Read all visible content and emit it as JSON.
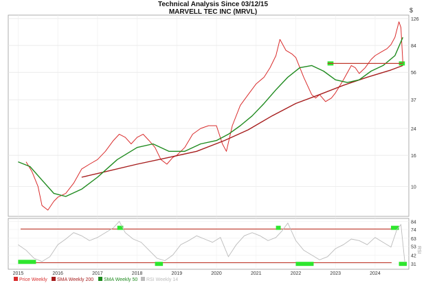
{
  "header": {
    "title": "Technical Analysis Since 03/12/15",
    "subtitle": "MARVELL TEC INC (MRVL)",
    "currency_symbol": "$"
  },
  "legend": [
    {
      "label": "Price Weekly",
      "color": "#d92b2b"
    },
    {
      "label": "SMA Weekly 200",
      "color": "#a61c1c"
    },
    {
      "label": "SMA Weekly 50",
      "color": "#1e8a1e"
    },
    {
      "label": "RSI Weekly 14",
      "color": "#bbbbbb"
    }
  ],
  "rsi_axis_label": "RSI",
  "chart_data": [
    {
      "type": "line",
      "panel": "price",
      "scale": "log",
      "y_ticks": [
        126,
        84,
        56,
        37,
        24,
        16,
        10
      ],
      "x_ticks": [
        "2015",
        "2016",
        "2017",
        "2018",
        "2019",
        "2020",
        "2021",
        "2022",
        "2023",
        "2024"
      ],
      "ylim": [
        6.5,
        130
      ],
      "series": [
        {
          "name": "Price Weekly",
          "color": "#d92b2b",
          "x": [
            2015.2,
            2015.35,
            2015.5,
            2015.6,
            2015.75,
            2015.9,
            2016.0,
            2016.2,
            2016.4,
            2016.6,
            2016.8,
            2017.0,
            2017.2,
            2017.4,
            2017.55,
            2017.7,
            2017.85,
            2018.0,
            2018.15,
            2018.3,
            2018.45,
            2018.6,
            2018.75,
            2018.9,
            2019.0,
            2019.2,
            2019.4,
            2019.6,
            2019.8,
            2020.0,
            2020.15,
            2020.25,
            2020.4,
            2020.6,
            2020.8,
            2021.0,
            2021.2,
            2021.35,
            2021.5,
            2021.6,
            2021.75,
            2021.9,
            2022.0,
            2022.2,
            2022.4,
            2022.5,
            2022.6,
            2022.75,
            2022.9,
            2023.0,
            2023.2,
            2023.4,
            2023.5,
            2023.6,
            2023.75,
            2023.9,
            2024.0,
            2024.15,
            2024.3,
            2024.4,
            2024.5,
            2024.6,
            2024.65,
            2024.7
          ],
          "y": [
            14.5,
            12.5,
            10,
            7.5,
            7,
            8,
            8.5,
            9,
            10.5,
            13,
            14,
            15,
            17,
            20,
            22,
            21,
            19,
            21,
            22,
            20,
            18,
            15,
            14,
            15.5,
            16,
            18,
            22,
            24,
            25,
            25,
            19,
            17,
            25,
            34,
            40,
            47,
            52,
            60,
            72,
            92,
            78,
            74,
            70,
            52,
            40,
            38,
            40,
            36,
            38,
            41,
            50,
            62,
            60,
            55,
            60,
            68,
            72,
            76,
            80,
            85,
            95,
            120,
            110,
            65
          ]
        },
        {
          "name": "SMA Weekly 200",
          "color": "#a61c1c",
          "x": [
            2016.6,
            2017.2,
            2018.0,
            2018.8,
            2019.5,
            2020.2,
            2020.8,
            2021.4,
            2022.0,
            2022.6,
            2023.2,
            2023.8,
            2024.4,
            2024.7
          ],
          "y": [
            11.5,
            12.5,
            14,
            15.5,
            17,
            20,
            23.5,
            29,
            35,
            40,
            46,
            52,
            58,
            62
          ]
        },
        {
          "name": "SMA Weekly 50",
          "color": "#1e8a1e",
          "x": [
            2015.0,
            2015.3,
            2015.6,
            2015.9,
            2016.2,
            2016.6,
            2017.0,
            2017.5,
            2018.0,
            2018.4,
            2018.8,
            2019.2,
            2019.6,
            2020.0,
            2020.3,
            2020.6,
            2020.9,
            2021.2,
            2021.5,
            2021.8,
            2022.1,
            2022.4,
            2022.7,
            2023.0,
            2023.3,
            2023.6,
            2023.9,
            2024.2,
            2024.5,
            2024.7
          ],
          "y": [
            14.5,
            13.5,
            11,
            9,
            8.6,
            9.6,
            11.5,
            15,
            18,
            19,
            17,
            17,
            19,
            20,
            22,
            25,
            29,
            35,
            43,
            52,
            60,
            62,
            57,
            50,
            48,
            50,
            57,
            62,
            72,
            95
          ]
        }
      ]
    },
    {
      "type": "line",
      "panel": "rsi",
      "y_ticks": [
        84,
        74,
        63,
        53,
        42,
        31
      ],
      "ylim": [
        26,
        86
      ],
      "series": [
        {
          "name": "RSI Weekly 14",
          "color": "#bbbbbb",
          "x": [
            2015.0,
            2015.2,
            2015.4,
            2015.6,
            2015.8,
            2016.0,
            2016.2,
            2016.4,
            2016.6,
            2016.8,
            2017.0,
            2017.2,
            2017.4,
            2017.55,
            2017.7,
            2017.9,
            2018.1,
            2018.3,
            2018.5,
            2018.7,
            2018.9,
            2019.1,
            2019.3,
            2019.5,
            2019.7,
            2019.9,
            2020.1,
            2020.3,
            2020.5,
            2020.7,
            2020.9,
            2021.1,
            2021.3,
            2021.5,
            2021.65,
            2021.8,
            2022.0,
            2022.2,
            2022.4,
            2022.6,
            2022.8,
            2023.0,
            2023.2,
            2023.4,
            2023.6,
            2023.8,
            2024.0,
            2024.2,
            2024.4,
            2024.55,
            2024.65,
            2024.75
          ],
          "y": [
            55,
            48,
            38,
            34,
            40,
            55,
            62,
            70,
            66,
            60,
            64,
            70,
            76,
            84,
            70,
            62,
            58,
            48,
            38,
            35,
            42,
            55,
            60,
            66,
            62,
            58,
            64,
            40,
            55,
            66,
            70,
            66,
            60,
            64,
            72,
            82,
            60,
            48,
            42,
            36,
            40,
            50,
            55,
            62,
            60,
            55,
            64,
            58,
            52,
            74,
            80,
            33
          ]
        }
      ]
    }
  ]
}
